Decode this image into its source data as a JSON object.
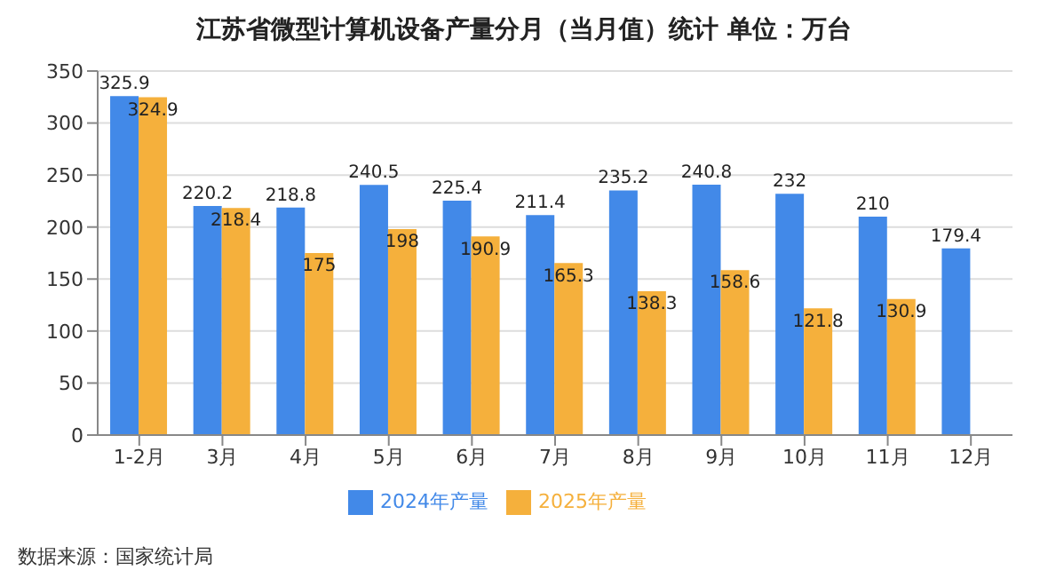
{
  "chart_data": {
    "type": "bar",
    "title": "江苏省微型计算机设备产量分月（当月值）统计 单位：万台",
    "categories": [
      "1-2月",
      "3月",
      "4月",
      "5月",
      "6月",
      "7月",
      "8月",
      "9月",
      "10月",
      "11月",
      "12月"
    ],
    "series": [
      {
        "name": "2024年产量",
        "color": "#4289e8",
        "values": [
          325.9,
          220.2,
          218.8,
          240.5,
          225.4,
          211.4,
          235.2,
          240.8,
          232,
          210,
          179.4
        ]
      },
      {
        "name": "2025年产量",
        "color": "#f5b03c",
        "values": [
          324.9,
          218.4,
          175,
          198,
          190.9,
          165.3,
          138.3,
          158.6,
          121.8,
          130.9,
          null
        ]
      }
    ],
    "ylim": [
      0,
      350
    ],
    "yticks": [
      0,
      50,
      100,
      150,
      200,
      250,
      300,
      350
    ],
    "grid": "y",
    "legend": "bottom",
    "data_labels": true,
    "annotations": [
      "数据来源：国家统计局"
    ]
  }
}
